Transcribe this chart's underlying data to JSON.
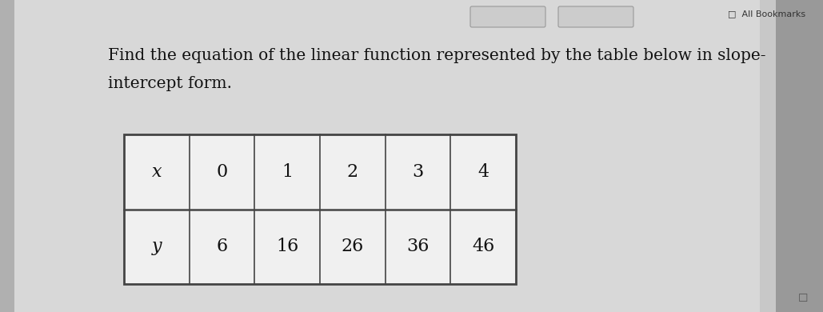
{
  "title_line1": "Find the equation of the linear function represented by the table below in slope-",
  "title_line2": "intercept form.",
  "title_fontsize": 14.5,
  "title_color": "#111111",
  "background_color": "#c8c8c8",
  "content_bg": "#e8e8e8",
  "bookmarks_text": "All Bookmarks",
  "table_x_labels": [
    "x",
    "0",
    "1",
    "2",
    "3",
    "4"
  ],
  "table_y_labels": [
    "y",
    "6",
    "16",
    "26",
    "36",
    "46"
  ],
  "cell_color": "#f0f0f0",
  "border_color": "#444444",
  "text_color": "#111111",
  "table_fontsize": 16,
  "italic_labels": [
    "x",
    "y"
  ]
}
